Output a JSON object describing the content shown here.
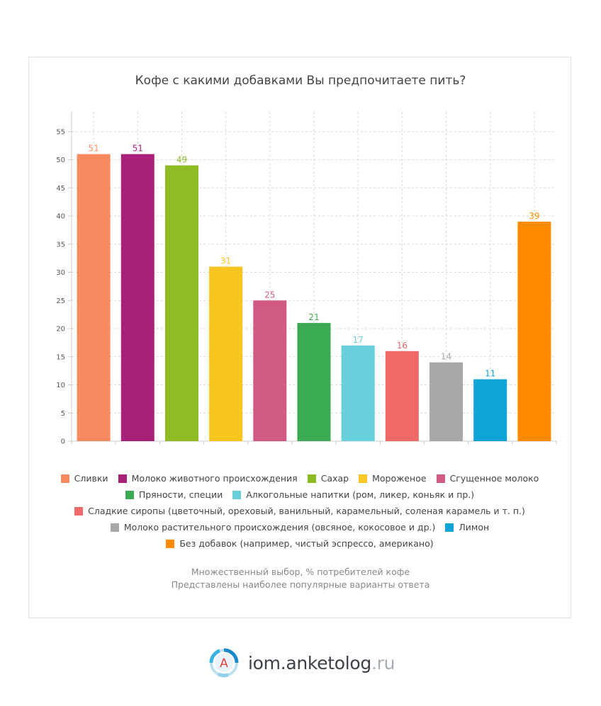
{
  "chart_data": {
    "type": "bar",
    "title": "Кофе с какими добавками Вы предпочитаете пить?",
    "categories": [
      "Сливки",
      "Молоко животного происхождения",
      "Сахар",
      "Мороженое",
      "Сгущенное молоко",
      "Пряности, специи",
      "Алкогольные напитки (ром, ликер, коньяк и пр.)",
      "Сладкие сиропы (цветочный, ореховый, ванильный, карамельный, соленая карамель и т. п.)",
      "Молоко растительного происхождения (овсяное, кокосовое и др.)",
      "Лимон",
      "Без добавок (например, чистый эспрессо, американо)"
    ],
    "values": [
      51,
      51,
      49,
      31,
      25,
      21,
      17,
      16,
      14,
      11,
      39
    ],
    "colors": [
      "#f78b5f",
      "#a8207a",
      "#8fbb25",
      "#fbc520",
      "#d05a83",
      "#3aaa53",
      "#67d0da",
      "#f06a6a",
      "#a8a8a8",
      "#0ea4d7",
      "#ff8a00"
    ],
    "ylim": [
      0,
      58.5
    ],
    "yticks": [
      0,
      5,
      10,
      15,
      20,
      25,
      30,
      35,
      40,
      45,
      50,
      55
    ],
    "grid": true,
    "legend_position": "bottom"
  },
  "notes": {
    "line1": "Множественный выбор, % потребителей кофе",
    "line2": "Представлены наиболее популярные варианты ответа"
  },
  "logo": {
    "letter": "A",
    "name": "iom.anketolog",
    "tld": ".ru"
  }
}
